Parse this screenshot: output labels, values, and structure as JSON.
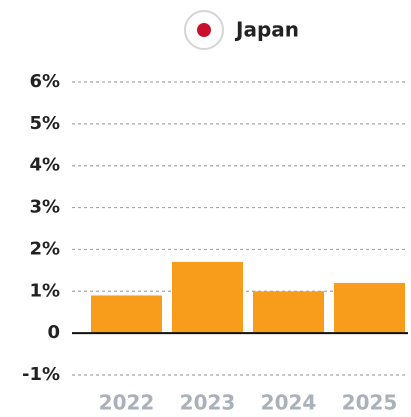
{
  "chart_data": {
    "type": "bar",
    "categories": [
      "2022",
      "2023",
      "2024",
      "2025"
    ],
    "series": [
      {
        "name": "Japan",
        "color": "#f89c1c",
        "values": [
          0.9,
          1.7,
          1.0,
          1.2
        ]
      }
    ],
    "ylim": [
      -1,
      6
    ],
    "yticks": [
      {
        "value": -1,
        "label": "-1%"
      },
      0,
      {
        "value": 1,
        "label": "1%"
      },
      {
        "value": 2,
        "label": "2%"
      },
      {
        "value": 3,
        "label": "3%"
      },
      {
        "value": 4,
        "label": "4%"
      },
      {
        "value": 5,
        "label": "5%"
      },
      {
        "value": 6,
        "label": "6%"
      }
    ],
    "grid": true
  }
}
